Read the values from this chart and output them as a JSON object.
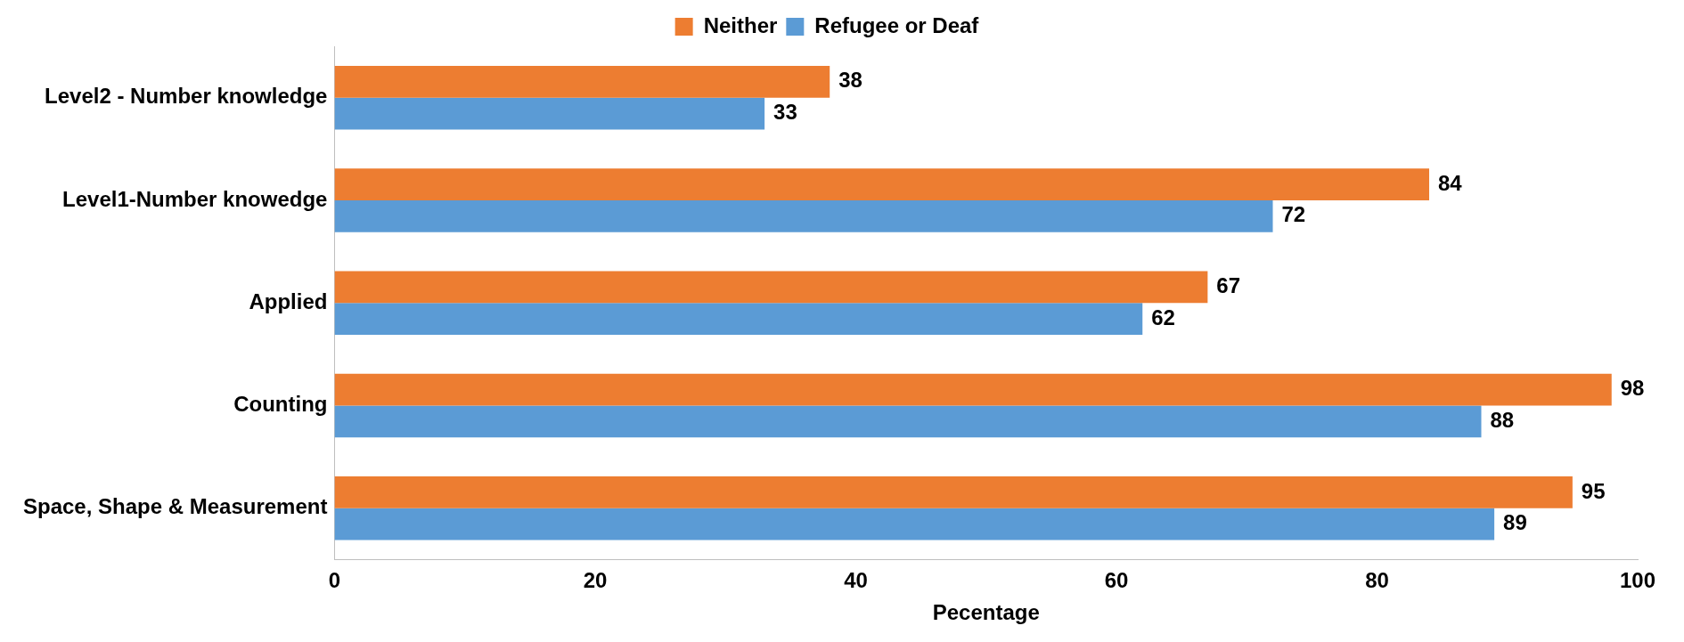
{
  "chart_data": {
    "type": "bar",
    "orientation": "horizontal",
    "xlabel": "Pecentage",
    "categories": [
      "Level2 - Number knowledge",
      "Level1-Number knowedge",
      "Applied",
      "Counting",
      "Space, Shape & Measurement"
    ],
    "series": [
      {
        "name": "Refugee or Deaf",
        "color": "#5b9bd5",
        "values": [
          33,
          72,
          62,
          88,
          89
        ]
      },
      {
        "name": "Neither",
        "color": "#ed7d31",
        "values": [
          38,
          84,
          67,
          98,
          95
        ]
      }
    ],
    "xlim": [
      0,
      100
    ],
    "xticks": [
      0,
      20,
      40,
      60,
      80,
      100
    ],
    "grid": false,
    "legend": "top",
    "data_labels": true
  }
}
